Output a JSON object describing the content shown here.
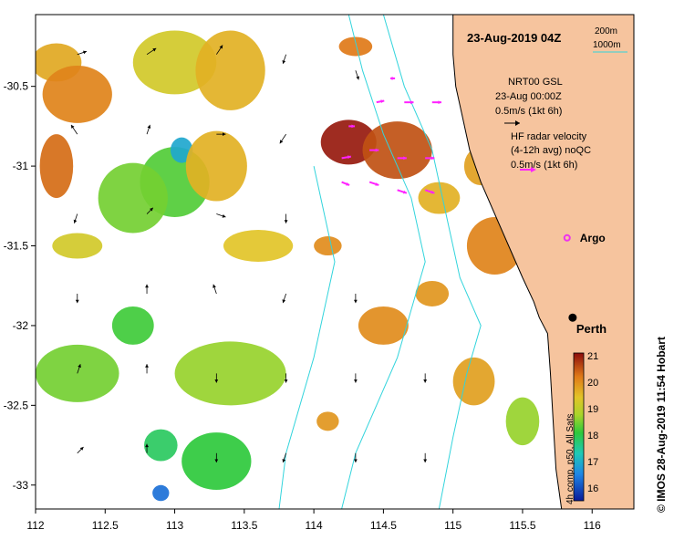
{
  "title": "23-Aug-2019 04Z",
  "scale": {
    "contour_a": "200m",
    "contour_b": "1000m"
  },
  "legend": {
    "model_line1": "NRT00 GSL",
    "model_line2": "23-Aug 00:00Z",
    "model_line3": "0.5m/s (1kt 6h)",
    "radar_line1": "HF radar velocity",
    "radar_line2": "(4-12h avg) noQC",
    "radar_line3": "0.5m/s (1kt 6h)"
  },
  "markers": {
    "argo": "Argo",
    "city": "Perth"
  },
  "colorbar": {
    "ticks": [
      "21",
      "20",
      "19",
      "18",
      "17",
      "16"
    ],
    "caption": "4h comp, p50, All Sats"
  },
  "credit": "© IMOS 28-Aug-2019 11:54 Hobart",
  "x_ticks": [
    "112",
    "112.5",
    "113",
    "113.5",
    "114",
    "114.5",
    "115",
    "115.5",
    "116"
  ],
  "y_ticks": [
    "-30.5",
    "-31",
    "-31.5",
    "-32",
    "-32.5",
    "-33"
  ],
  "colors": {
    "land": "#f6c49e",
    "coast": "#000000",
    "contour": "#32d4dc",
    "radar": "#ff22ff",
    "argo": "#ee33ee"
  },
  "map_data": {
    "lon_range": [
      112,
      116.3
    ],
    "lat_range": [
      -33.15,
      -30.05
    ],
    "sst_range": [
      15.5,
      21
    ],
    "sst_patches": [
      {
        "lon": 112.15,
        "lat": -30.35,
        "rx": 0.18,
        "ry": 0.12,
        "sst": 19.7
      },
      {
        "lon": 112.3,
        "lat": -30.55,
        "rx": 0.25,
        "ry": 0.18,
        "sst": 20.1
      },
      {
        "lon": 112.15,
        "lat": -31.0,
        "rx": 0.12,
        "ry": 0.2,
        "sst": 20.3
      },
      {
        "lon": 113.0,
        "lat": -30.35,
        "rx": 0.3,
        "ry": 0.2,
        "sst": 19.2
      },
      {
        "lon": 113.4,
        "lat": -30.4,
        "rx": 0.25,
        "ry": 0.25,
        "sst": 19.6
      },
      {
        "lon": 113.0,
        "lat": -31.1,
        "rx": 0.25,
        "ry": 0.22,
        "sst": 18.2
      },
      {
        "lon": 112.7,
        "lat": -31.2,
        "rx": 0.25,
        "ry": 0.22,
        "sst": 18.4
      },
      {
        "lon": 113.05,
        "lat": -30.9,
        "rx": 0.08,
        "ry": 0.08,
        "sst": 16.9
      },
      {
        "lon": 113.3,
        "lat": -31.0,
        "rx": 0.22,
        "ry": 0.22,
        "sst": 19.6
      },
      {
        "lon": 112.3,
        "lat": -31.5,
        "rx": 0.18,
        "ry": 0.08,
        "sst": 19.2
      },
      {
        "lon": 113.6,
        "lat": -31.5,
        "rx": 0.25,
        "ry": 0.1,
        "sst": 19.4
      },
      {
        "lon": 112.7,
        "lat": -32.0,
        "rx": 0.15,
        "ry": 0.12,
        "sst": 18.1
      },
      {
        "lon": 112.3,
        "lat": -32.3,
        "rx": 0.3,
        "ry": 0.18,
        "sst": 18.4
      },
      {
        "lon": 113.4,
        "lat": -32.3,
        "rx": 0.4,
        "ry": 0.2,
        "sst": 18.6
      },
      {
        "lon": 113.3,
        "lat": -32.85,
        "rx": 0.25,
        "ry": 0.18,
        "sst": 18.0
      },
      {
        "lon": 112.9,
        "lat": -32.75,
        "rx": 0.12,
        "ry": 0.1,
        "sst": 17.8
      },
      {
        "lon": 112.9,
        "lat": -33.05,
        "rx": 0.06,
        "ry": 0.05,
        "sst": 16.3
      },
      {
        "lon": 114.25,
        "lat": -30.85,
        "rx": 0.2,
        "ry": 0.14,
        "sst": 20.9
      },
      {
        "lon": 114.6,
        "lat": -30.9,
        "rx": 0.25,
        "ry": 0.18,
        "sst": 20.5
      },
      {
        "lon": 114.9,
        "lat": -31.2,
        "rx": 0.15,
        "ry": 0.1,
        "sst": 19.6
      },
      {
        "lon": 115.2,
        "lat": -31.0,
        "rx": 0.12,
        "ry": 0.12,
        "sst": 19.8
      },
      {
        "lon": 115.3,
        "lat": -31.5,
        "rx": 0.2,
        "ry": 0.18,
        "sst": 20.1
      },
      {
        "lon": 114.1,
        "lat": -31.5,
        "rx": 0.1,
        "ry": 0.06,
        "sst": 20.0
      },
      {
        "lon": 114.5,
        "lat": -32.0,
        "rx": 0.18,
        "ry": 0.12,
        "sst": 20.0
      },
      {
        "lon": 114.85,
        "lat": -31.8,
        "rx": 0.12,
        "ry": 0.08,
        "sst": 19.9
      },
      {
        "lon": 115.15,
        "lat": -32.35,
        "rx": 0.15,
        "ry": 0.15,
        "sst": 19.8
      },
      {
        "lon": 115.5,
        "lat": -32.6,
        "rx": 0.12,
        "ry": 0.15,
        "sst": 18.6
      },
      {
        "lon": 114.1,
        "lat": -32.6,
        "rx": 0.08,
        "ry": 0.06,
        "sst": 19.9
      },
      {
        "lon": 114.3,
        "lat": -30.25,
        "rx": 0.12,
        "ry": 0.06,
        "sst": 20.2
      }
    ],
    "coast": [
      [
        115.0,
        -30.05
      ],
      [
        115.0,
        -30.3
      ],
      [
        115.02,
        -30.5
      ],
      [
        115.07,
        -30.7
      ],
      [
        115.12,
        -30.9
      ],
      [
        115.2,
        -31.1
      ],
      [
        115.3,
        -31.3
      ],
      [
        115.4,
        -31.5
      ],
      [
        115.5,
        -31.7
      ],
      [
        115.58,
        -31.85
      ],
      [
        115.62,
        -31.95
      ],
      [
        115.68,
        -32.05
      ],
      [
        115.7,
        -32.3
      ],
      [
        115.72,
        -32.6
      ],
      [
        115.74,
        -32.9
      ],
      [
        115.78,
        -33.15
      ]
    ],
    "contours": [
      [
        [
          114.25,
          -30.05
        ],
        [
          114.35,
          -30.4
        ],
        [
          114.5,
          -30.8
        ],
        [
          114.7,
          -31.2
        ],
        [
          114.8,
          -31.6
        ],
        [
          114.7,
          -31.9
        ],
        [
          114.6,
          -32.2
        ],
        [
          114.45,
          -32.5
        ],
        [
          114.3,
          -32.8
        ],
        [
          114.2,
          -33.15
        ]
      ],
      [
        [
          114.5,
          -30.05
        ],
        [
          114.65,
          -30.5
        ],
        [
          114.85,
          -30.9
        ],
        [
          114.95,
          -31.3
        ],
        [
          115.05,
          -31.7
        ],
        [
          115.2,
          -32.0
        ],
        [
          115.1,
          -32.3
        ],
        [
          115.0,
          -32.7
        ],
        [
          114.9,
          -33.15
        ]
      ],
      [
        [
          114.0,
          -31.0
        ],
        [
          114.15,
          -31.6
        ],
        [
          114.0,
          -32.2
        ],
        [
          113.8,
          -32.8
        ],
        [
          113.75,
          -33.15
        ]
      ]
    ],
    "model_arrows": [
      {
        "lon": 112.3,
        "lat": -30.3,
        "u": 0.3,
        "v": 0.1
      },
      {
        "lon": 112.8,
        "lat": -30.3,
        "u": 0.3,
        "v": 0.2
      },
      {
        "lon": 113.3,
        "lat": -30.3,
        "u": 0.2,
        "v": 0.3
      },
      {
        "lon": 113.8,
        "lat": -30.3,
        "u": -0.1,
        "v": -0.3
      },
      {
        "lon": 112.3,
        "lat": -30.8,
        "u": -0.2,
        "v": 0.3
      },
      {
        "lon": 112.8,
        "lat": -30.8,
        "u": 0.1,
        "v": 0.3
      },
      {
        "lon": 113.3,
        "lat": -30.8,
        "u": 0.3,
        "v": 0.0
      },
      {
        "lon": 113.8,
        "lat": -30.8,
        "u": -0.2,
        "v": -0.3
      },
      {
        "lon": 112.3,
        "lat": -31.3,
        "u": -0.1,
        "v": -0.3
      },
      {
        "lon": 112.8,
        "lat": -31.3,
        "u": 0.2,
        "v": 0.2
      },
      {
        "lon": 113.3,
        "lat": -31.3,
        "u": 0.3,
        "v": -0.1
      },
      {
        "lon": 113.8,
        "lat": -31.3,
        "u": 0.0,
        "v": -0.3
      },
      {
        "lon": 112.3,
        "lat": -31.8,
        "u": 0.0,
        "v": -0.3
      },
      {
        "lon": 112.8,
        "lat": -31.8,
        "u": 0.0,
        "v": 0.3
      },
      {
        "lon": 113.3,
        "lat": -31.8,
        "u": -0.1,
        "v": 0.3
      },
      {
        "lon": 113.8,
        "lat": -31.8,
        "u": -0.1,
        "v": -0.3
      },
      {
        "lon": 112.3,
        "lat": -32.3,
        "u": 0.1,
        "v": 0.3
      },
      {
        "lon": 112.8,
        "lat": -32.3,
        "u": 0.0,
        "v": 0.3
      },
      {
        "lon": 113.3,
        "lat": -32.3,
        "u": 0.0,
        "v": -0.3
      },
      {
        "lon": 113.8,
        "lat": -32.3,
        "u": 0.0,
        "v": -0.3
      },
      {
        "lon": 112.3,
        "lat": -32.8,
        "u": 0.2,
        "v": 0.2
      },
      {
        "lon": 112.8,
        "lat": -32.8,
        "u": 0.0,
        "v": 0.3
      },
      {
        "lon": 113.3,
        "lat": -32.8,
        "u": 0.0,
        "v": -0.3
      },
      {
        "lon": 113.8,
        "lat": -32.8,
        "u": -0.1,
        "v": -0.3
      },
      {
        "lon": 114.3,
        "lat": -31.8,
        "u": 0.0,
        "v": -0.3
      },
      {
        "lon": 114.3,
        "lat": -32.3,
        "u": 0.0,
        "v": -0.3
      },
      {
        "lon": 114.3,
        "lat": -32.8,
        "u": 0.0,
        "v": -0.3
      },
      {
        "lon": 114.8,
        "lat": -32.3,
        "u": 0.0,
        "v": -0.3
      },
      {
        "lon": 114.8,
        "lat": -32.8,
        "u": 0.0,
        "v": -0.3
      },
      {
        "lon": 114.3,
        "lat": -30.4,
        "u": 0.1,
        "v": -0.3
      }
    ],
    "radar_arrows": [
      {
        "lon": 114.2,
        "lat": -31.1,
        "u": 0.25,
        "v": -0.1
      },
      {
        "lon": 114.4,
        "lat": -31.1,
        "u": 0.3,
        "v": -0.1
      },
      {
        "lon": 114.6,
        "lat": -31.15,
        "u": 0.3,
        "v": -0.1
      },
      {
        "lon": 114.8,
        "lat": -31.15,
        "u": 0.3,
        "v": -0.1
      },
      {
        "lon": 114.2,
        "lat": -30.95,
        "u": 0.3,
        "v": 0.05
      },
      {
        "lon": 114.4,
        "lat": -30.9,
        "u": 0.3,
        "v": 0.0
      },
      {
        "lon": 114.6,
        "lat": -30.95,
        "u": 0.3,
        "v": 0.0
      },
      {
        "lon": 114.8,
        "lat": -30.95,
        "u": 0.3,
        "v": 0.0
      },
      {
        "lon": 114.45,
        "lat": -30.6,
        "u": 0.25,
        "v": 0.05
      },
      {
        "lon": 114.65,
        "lat": -30.6,
        "u": 0.3,
        "v": 0.0
      },
      {
        "lon": 114.85,
        "lat": -30.6,
        "u": 0.3,
        "v": 0.0
      },
      {
        "lon": 114.25,
        "lat": -30.75,
        "u": 0.2,
        "v": 0.0
      },
      {
        "lon": 114.55,
        "lat": -30.45,
        "u": 0.15,
        "v": 0.0
      }
    ],
    "argo": {
      "lon": 115.82,
      "lat": -31.45
    },
    "perth": {
      "lon": 115.86,
      "lat": -31.95
    }
  }
}
